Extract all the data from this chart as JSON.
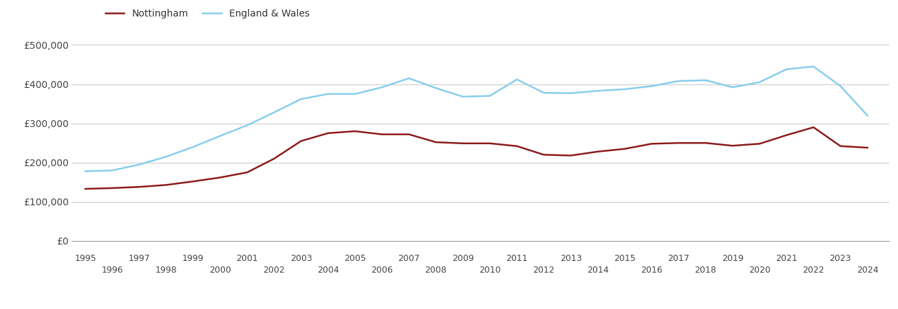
{
  "years": [
    1995,
    1996,
    1997,
    1998,
    1999,
    2000,
    2001,
    2002,
    2003,
    2004,
    2005,
    2006,
    2007,
    2008,
    2009,
    2010,
    2011,
    2012,
    2013,
    2014,
    2015,
    2016,
    2017,
    2018,
    2019,
    2020,
    2021,
    2022,
    2023,
    2024
  ],
  "nottingham": [
    133000,
    135000,
    138000,
    143000,
    152000,
    162000,
    175000,
    210000,
    255000,
    275000,
    280000,
    272000,
    272000,
    252000,
    249000,
    249000,
    242000,
    220000,
    218000,
    228000,
    235000,
    248000,
    250000,
    250000,
    243000,
    248000,
    270000,
    290000,
    242000,
    238000
  ],
  "england_wales": [
    178000,
    180000,
    195000,
    215000,
    240000,
    268000,
    295000,
    328000,
    362000,
    375000,
    375000,
    392000,
    415000,
    390000,
    368000,
    370000,
    412000,
    378000,
    377000,
    383000,
    387000,
    395000,
    408000,
    410000,
    392000,
    405000,
    438000,
    445000,
    395000,
    320000
  ],
  "nottingham_color": "#8B1A1A",
  "england_wales_color": "#87CEEB",
  "background_color": "#ffffff",
  "grid_color": "#cccccc",
  "ylim": [
    0,
    520000
  ],
  "yticks": [
    0,
    100000,
    200000,
    300000,
    400000,
    500000
  ],
  "ytick_labels": [
    "£0",
    "£100,000",
    "£200,000",
    "£300,000",
    "£400,000",
    "£500,000"
  ],
  "legend_nottingham": "Nottingham",
  "legend_ew": "England & Wales",
  "line_width": 1.8,
  "xlim_left": 1994.5,
  "xlim_right": 2024.8
}
